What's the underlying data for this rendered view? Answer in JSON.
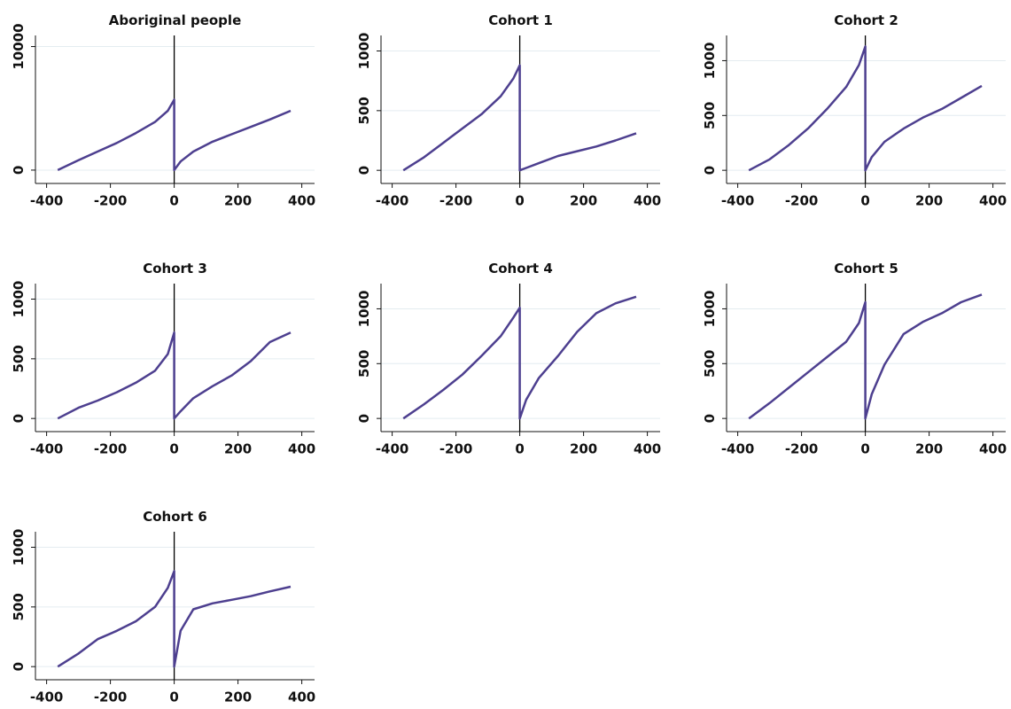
{
  "chart_data": [
    {
      "type": "line",
      "title": "Aboriginal people",
      "x": [
        -365,
        -300,
        -240,
        -180,
        -120,
        -60,
        -20,
        0,
        0,
        20,
        60,
        120,
        180,
        240,
        300,
        365
      ],
      "values": [
        0,
        800,
        1500,
        2200,
        3000,
        3900,
        4800,
        5700,
        0,
        700,
        1500,
        2300,
        2900,
        3500,
        4100,
        4800
      ],
      "color": "#4d3f8f",
      "xlim": [
        -435,
        440
      ],
      "ylim": [
        -1080,
        10900
      ],
      "xticks": [
        -400,
        -200,
        0,
        200,
        400
      ],
      "yticks": [
        0,
        10000
      ],
      "grid": true,
      "vline": 0
    },
    {
      "type": "line",
      "title": "Cohort 1",
      "x": [
        -365,
        -300,
        -240,
        -180,
        -120,
        -60,
        -20,
        0,
        0,
        20,
        60,
        120,
        180,
        240,
        300,
        365
      ],
      "values": [
        0,
        110,
        230,
        350,
        470,
        620,
        770,
        880,
        0,
        20,
        60,
        120,
        160,
        200,
        250,
        310
      ],
      "color": "#4d3f8f",
      "xlim": [
        -435,
        440
      ],
      "ylim": [
        -110,
        1130
      ],
      "xticks": [
        -400,
        -200,
        0,
        200,
        400
      ],
      "yticks": [
        0,
        500,
        1000
      ],
      "grid": true,
      "vline": 0
    },
    {
      "type": "line",
      "title": "Cohort 2",
      "x": [
        -365,
        -300,
        -240,
        -180,
        -120,
        -60,
        -20,
        0,
        0,
        20,
        60,
        120,
        180,
        240,
        300,
        365
      ],
      "values": [
        0,
        100,
        230,
        380,
        560,
        760,
        960,
        1130,
        0,
        120,
        260,
        380,
        480,
        560,
        660,
        770
      ],
      "color": "#4d3f8f",
      "xlim": [
        -435,
        440
      ],
      "ylim": [
        -120,
        1230
      ],
      "xticks": [
        -400,
        -200,
        0,
        200,
        400
      ],
      "yticks": [
        0,
        500,
        1000
      ],
      "grid": true,
      "vline": 0
    },
    {
      "type": "line",
      "title": "Cohort 3",
      "x": [
        -365,
        -300,
        -240,
        -180,
        -120,
        -60,
        -20,
        0,
        0,
        20,
        60,
        120,
        180,
        240,
        300,
        365
      ],
      "values": [
        0,
        90,
        150,
        220,
        300,
        400,
        540,
        720,
        0,
        60,
        170,
        270,
        360,
        480,
        640,
        720
      ],
      "color": "#4d3f8f",
      "xlim": [
        -435,
        440
      ],
      "ylim": [
        -110,
        1130
      ],
      "xticks": [
        -400,
        -200,
        0,
        200,
        400
      ],
      "yticks": [
        0,
        500,
        1000
      ],
      "grid": true,
      "vline": 0
    },
    {
      "type": "line",
      "title": "Cohort 4",
      "x": [
        -365,
        -300,
        -240,
        -180,
        -120,
        -60,
        -20,
        0,
        0,
        20,
        60,
        120,
        180,
        240,
        300,
        365
      ],
      "values": [
        0,
        130,
        260,
        400,
        570,
        750,
        920,
        1010,
        0,
        170,
        370,
        570,
        790,
        960,
        1050,
        1110
      ],
      "color": "#4d3f8f",
      "xlim": [
        -435,
        440
      ],
      "ylim": [
        -120,
        1230
      ],
      "xticks": [
        -400,
        -200,
        0,
        200,
        400
      ],
      "yticks": [
        0,
        500,
        1000
      ],
      "grid": true,
      "vline": 0
    },
    {
      "type": "line",
      "title": "Cohort 5",
      "x": [
        -365,
        -300,
        -240,
        -180,
        -120,
        -60,
        -20,
        0,
        0,
        20,
        60,
        120,
        180,
        240,
        300,
        365
      ],
      "values": [
        0,
        140,
        280,
        420,
        560,
        700,
        870,
        1060,
        0,
        220,
        490,
        770,
        880,
        960,
        1060,
        1130
      ],
      "color": "#4d3f8f",
      "xlim": [
        -435,
        440
      ],
      "ylim": [
        -120,
        1230
      ],
      "xticks": [
        -400,
        -200,
        0,
        200,
        400
      ],
      "yticks": [
        0,
        500,
        1000
      ],
      "grid": true,
      "vline": 0
    },
    {
      "type": "line",
      "title": "Cohort 6",
      "x": [
        -365,
        -300,
        -240,
        -180,
        -120,
        -60,
        -20,
        0,
        0,
        20,
        60,
        120,
        180,
        240,
        300,
        365
      ],
      "values": [
        0,
        110,
        230,
        300,
        380,
        500,
        660,
        800,
        0,
        300,
        480,
        530,
        560,
        590,
        630,
        670
      ],
      "color": "#4d3f8f",
      "xlim": [
        -435,
        440
      ],
      "ylim": [
        -110,
        1130
      ],
      "xticks": [
        -400,
        -200,
        0,
        200,
        400
      ],
      "yticks": [
        0,
        500,
        1000
      ],
      "grid": true,
      "vline": 0
    }
  ]
}
